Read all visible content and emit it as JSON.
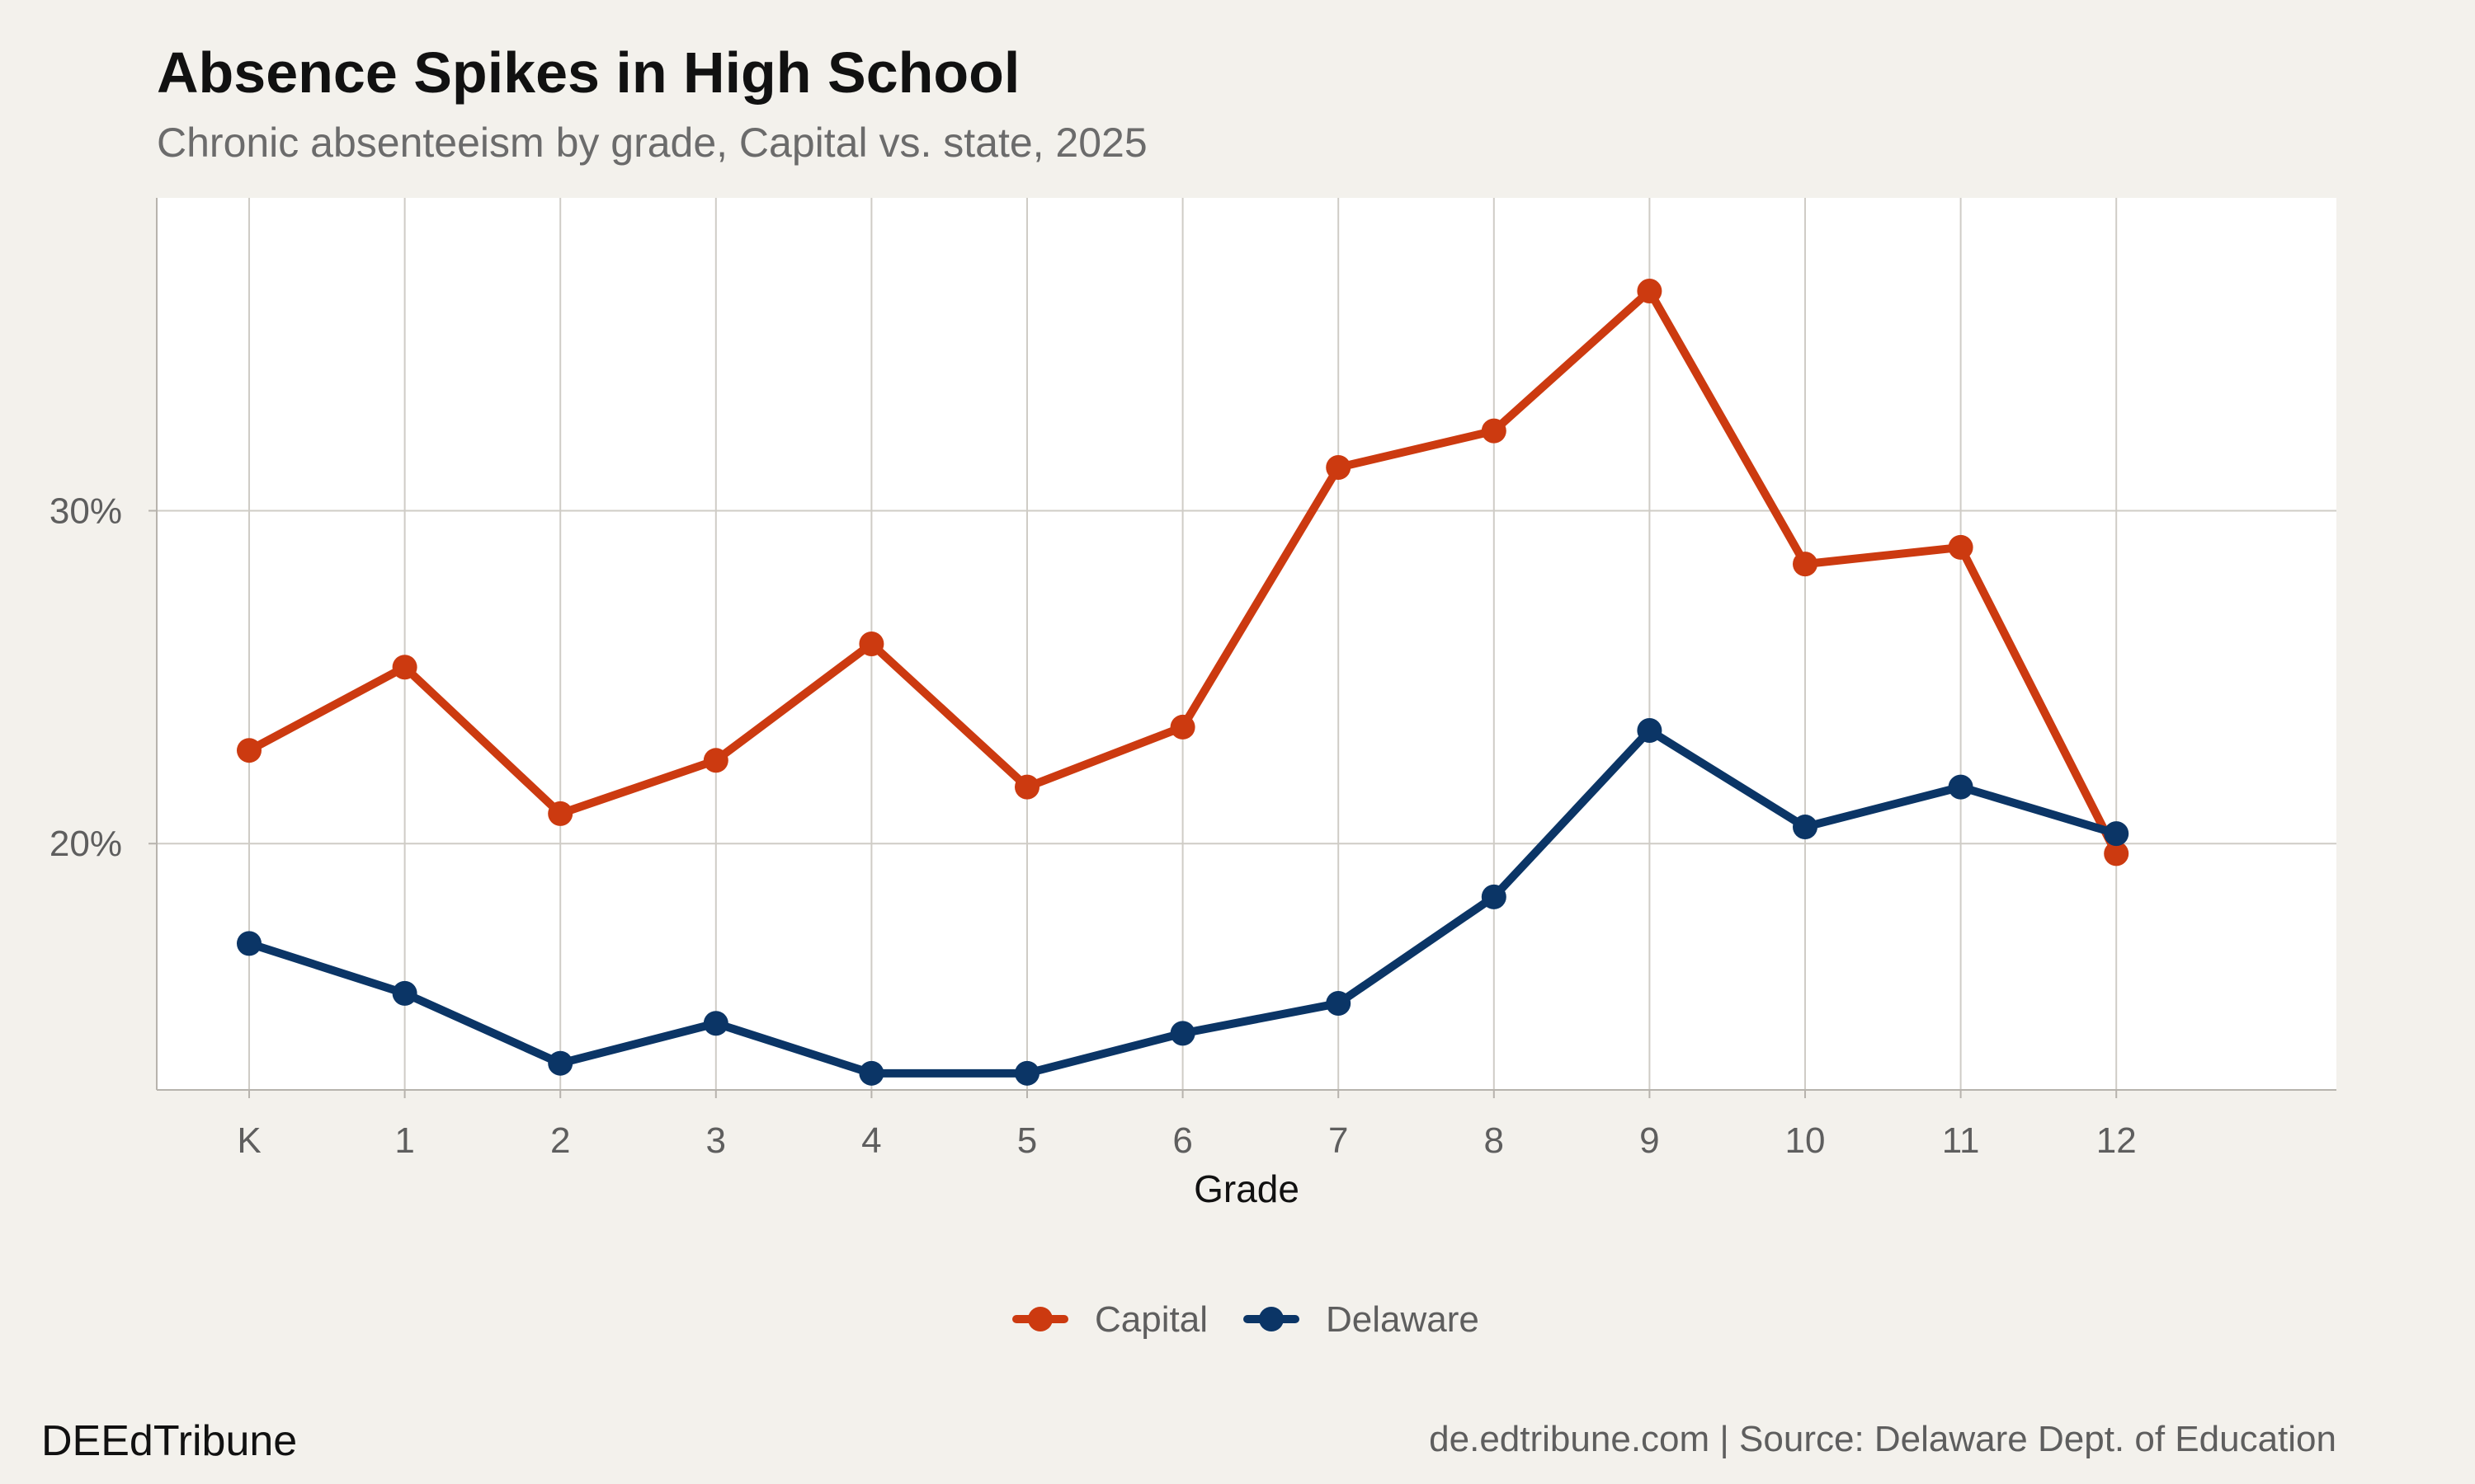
{
  "header": {
    "title": "Absence Spikes in High School",
    "subtitle": "Chronic absenteeism by grade, Capital vs. state, 2025"
  },
  "footer": {
    "brand": "DEEdTribune",
    "source": "de.edtribune.com | Source: Delaware Dept. of Education"
  },
  "chart_data": {
    "type": "line",
    "title": "Absence Spikes in High School",
    "subtitle": "Chronic absenteeism by grade, Capital vs. state, 2025",
    "xlabel": "Grade",
    "ylabel": "",
    "categories": [
      "K",
      "1",
      "2",
      "3",
      "4",
      "5",
      "6",
      "7",
      "8",
      "9",
      "10",
      "11",
      "12"
    ],
    "y_tick_values": [
      20,
      30
    ],
    "y_tick_labels": [
      "20%",
      "30%"
    ],
    "ylim": [
      12.6,
      39.4
    ],
    "grid": true,
    "legend_position": "bottom",
    "series": [
      {
        "name": "Capital",
        "color": "#cc3a10",
        "values": [
          22.8,
          25.3,
          20.9,
          22.5,
          26.0,
          21.7,
          23.5,
          31.3,
          32.4,
          36.6,
          28.4,
          28.9,
          19.7
        ]
      },
      {
        "name": "Delaware",
        "color": "#0b3566",
        "values": [
          17.0,
          15.5,
          13.4,
          14.6,
          13.1,
          13.1,
          14.3,
          15.2,
          18.4,
          23.4,
          20.5,
          21.7,
          20.3
        ]
      }
    ]
  }
}
